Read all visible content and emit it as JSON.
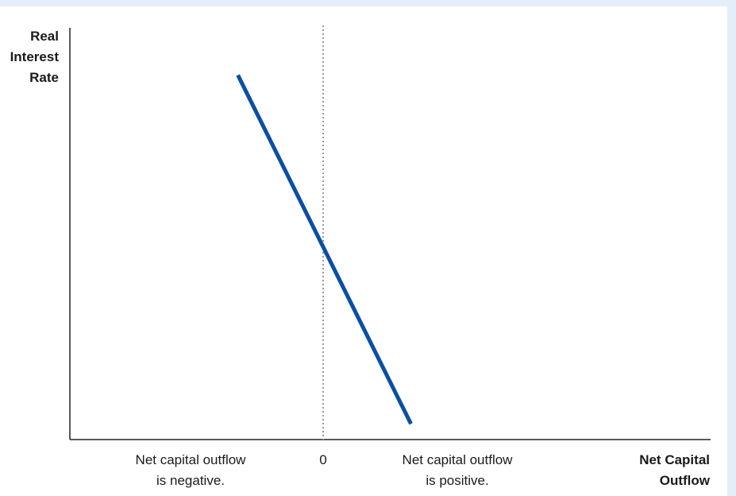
{
  "chart_data": {
    "type": "line",
    "ylabel": [
      "Real",
      "Interest",
      "Rate"
    ],
    "xlabel": [
      "Net Capital",
      "Outflow"
    ],
    "zero_label": "0",
    "annotations": {
      "negative": [
        "Net capital outflow",
        "is negative."
      ],
      "positive": [
        "Net capital outflow",
        "is positive."
      ]
    },
    "series": [
      {
        "color": "#0a4fa3",
        "points": [
          [
            -0.33,
            0.93
          ],
          [
            0.34,
            0.04
          ]
        ]
      }
    ],
    "xlim": [
      -1,
      1.5
    ],
    "ylim": [
      0,
      1
    ],
    "reference_line": {
      "x": 0,
      "style": "dotted"
    },
    "grid": false
  }
}
